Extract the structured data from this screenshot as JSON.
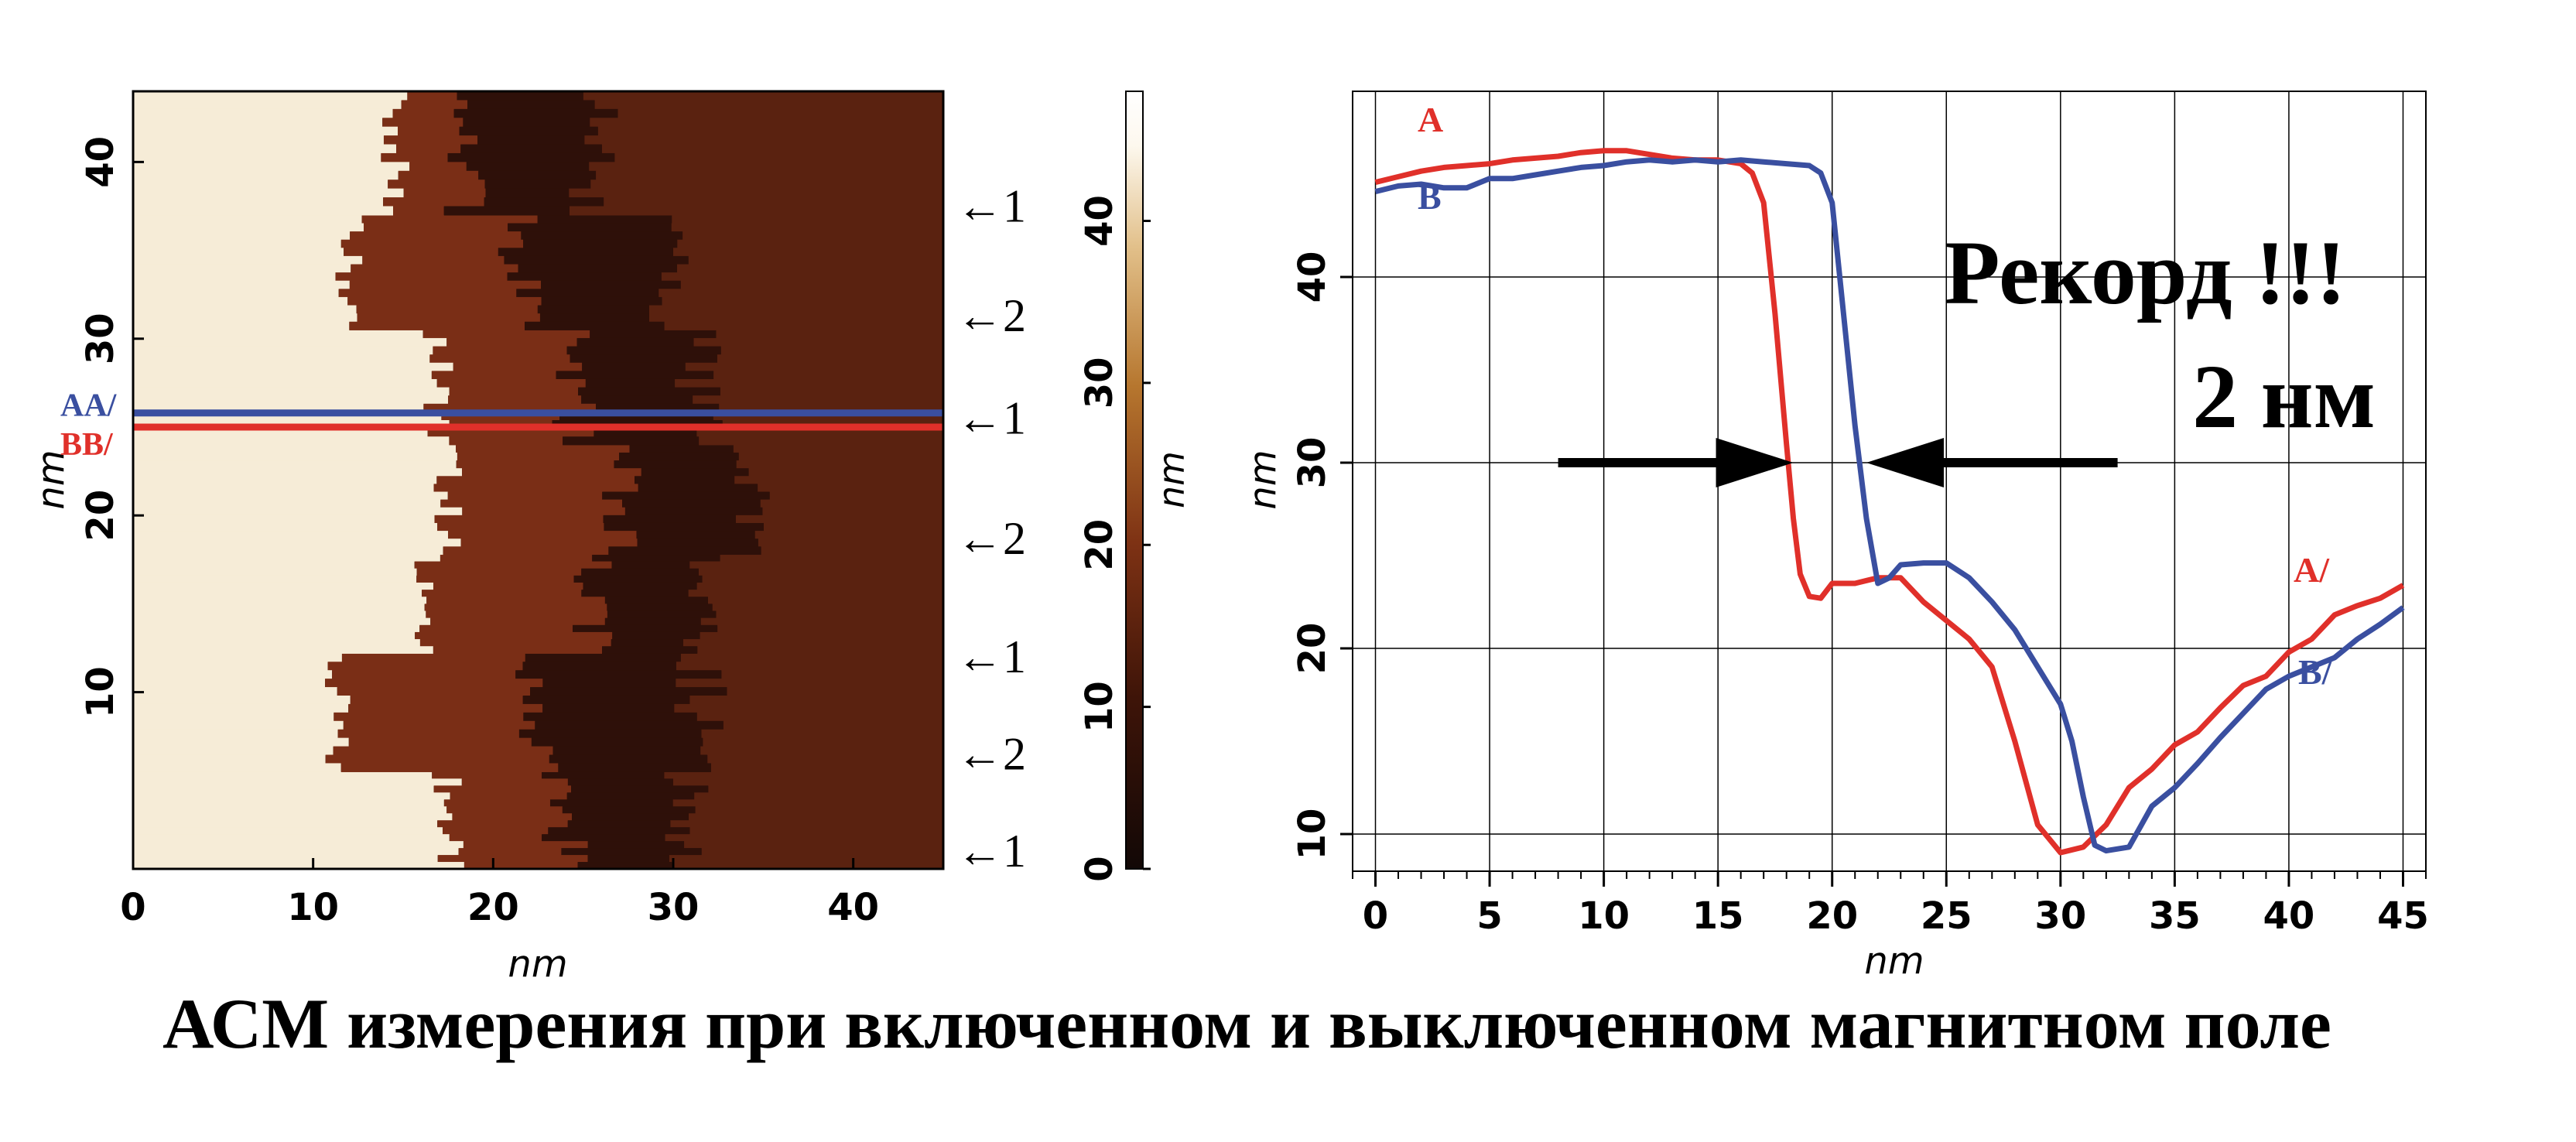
{
  "chart_data": [
    {
      "type": "heatmap",
      "xlabel": "nm",
      "ylabel": "nm",
      "xlim": [
        0,
        45
      ],
      "ylim": [
        0,
        44
      ],
      "xticks": [
        "0",
        "10",
        "20",
        "30",
        "40"
      ],
      "yticks": [
        "10",
        "20",
        "30",
        "40"
      ],
      "colorbar": {
        "label": "nm",
        "range": [
          0,
          48
        ],
        "ticks": [
          "0",
          "10",
          "20",
          "30",
          "40"
        ],
        "colors": [
          "#120806",
          "#3e1408",
          "#7e3214",
          "#b6762e",
          "#e2c08a",
          "#fdf8ee",
          "#ffffff"
        ]
      },
      "colors": {
        "high": "#f6ecd7",
        "mid": "#7a2e16",
        "low": "#1c0a07"
      },
      "domain_rows": [
        {
          "y0": 0,
          "y1": 5.5,
          "step1": 17.5,
          "step2": 24.0,
          "step3": 31.0
        },
        {
          "y0": 5.5,
          "y1": 12.2,
          "step1": 11.2,
          "step2": 22.5,
          "step3": 31.5
        },
        {
          "y0": 12.2,
          "y1": 17.8,
          "step1": 16.5,
          "step2": 25.5,
          "step3": 32.0
        },
        {
          "y0": 17.8,
          "y1": 24.0,
          "step1": 17.5,
          "step2": 27.0,
          "step3": 34.0
        },
        {
          "y0": 24.0,
          "y1": 30.5,
          "step1": 17.0,
          "step2": 24.5,
          "step3": 31.5
        },
        {
          "y0": 30.5,
          "y1": 37.0,
          "step1": 12.0,
          "step2": 21.5,
          "step3": 30.0
        },
        {
          "y0": 37.0,
          "y1": 44.0,
          "step1": 14.5,
          "step2": 18.5,
          "step3": 25.5
        }
      ],
      "profile_lines": [
        {
          "label": "AA/",
          "y": 25.8,
          "color": "#3a4fa0"
        },
        {
          "label": "BB/",
          "y": 25.0,
          "color": "#e0302a"
        }
      ],
      "domain_markers": [
        {
          "y": 37.5,
          "label": "←1"
        },
        {
          "y": 31.3,
          "label": "←2"
        },
        {
          "y": 25.5,
          "label": "←1"
        },
        {
          "y": 18.7,
          "label": "←2"
        },
        {
          "y": 12.0,
          "label": "←1"
        },
        {
          "y": 6.5,
          "label": "←2"
        },
        {
          "y": 1.0,
          "label": "←1"
        }
      ]
    },
    {
      "type": "line",
      "xlabel": "nm",
      "ylabel": "nm",
      "xlim": [
        -1,
        46
      ],
      "ylim": [
        8,
        50
      ],
      "xticks": [
        "0",
        "5",
        "10",
        "15",
        "20",
        "25",
        "30",
        "35",
        "40",
        "45"
      ],
      "yticks": [
        "10",
        "20",
        "30",
        "40"
      ],
      "series": [
        {
          "name": "A",
          "end_label": "A/",
          "color": "#e0302a",
          "x": [
            0,
            1,
            2,
            3,
            4,
            5,
            6,
            7,
            8,
            9,
            10,
            11,
            12,
            13,
            14,
            15,
            16,
            16.5,
            17,
            17.5,
            18,
            18.3,
            18.6,
            19,
            19.5,
            20,
            21,
            22,
            23,
            24,
            25,
            26,
            27,
            28,
            29,
            30,
            31,
            32,
            33,
            34,
            35,
            36,
            37,
            38,
            39,
            40,
            41,
            42,
            43,
            44,
            45
          ],
          "y": [
            45.1,
            45.4,
            45.7,
            45.9,
            46.0,
            46.1,
            46.3,
            46.4,
            46.5,
            46.7,
            46.8,
            46.8,
            46.6,
            46.4,
            46.3,
            46.3,
            46.1,
            45.6,
            44.0,
            38.0,
            31.0,
            27.0,
            24.0,
            22.8,
            22.7,
            23.5,
            23.5,
            23.8,
            23.8,
            22.5,
            21.5,
            20.5,
            19.0,
            15.0,
            10.5,
            9.0,
            9.3,
            10.5,
            12.5,
            13.5,
            14.8,
            15.5,
            16.8,
            18.0,
            18.5,
            19.8,
            20.5,
            21.8,
            22.3,
            22.7,
            23.4
          ]
        },
        {
          "name": "B",
          "end_label": "B/",
          "color": "#3a4fa0",
          "x": [
            0,
            1,
            2,
            3,
            4,
            5,
            6,
            7,
            8,
            9,
            10,
            11,
            12,
            13,
            14,
            15,
            16,
            17,
            18,
            19,
            19.5,
            20,
            20.5,
            21,
            21.5,
            22,
            22.5,
            23,
            24,
            25,
            26,
            27,
            28,
            29,
            30,
            30.5,
            31,
            31.5,
            32,
            33,
            34,
            35,
            36,
            37,
            38,
            39,
            40,
            41,
            42,
            43,
            44,
            45
          ],
          "y": [
            44.6,
            44.9,
            45.0,
            44.8,
            44.8,
            45.3,
            45.3,
            45.5,
            45.7,
            45.9,
            46.0,
            46.2,
            46.3,
            46.2,
            46.3,
            46.2,
            46.3,
            46.2,
            46.1,
            46.0,
            45.6,
            44.0,
            38.0,
            32.0,
            27.0,
            23.5,
            23.8,
            24.5,
            24.6,
            24.6,
            23.8,
            22.5,
            21.0,
            19.0,
            17.0,
            15.0,
            12.0,
            9.4,
            9.1,
            9.3,
            11.5,
            12.5,
            13.8,
            15.2,
            16.5,
            17.8,
            18.5,
            19.0,
            19.5,
            20.5,
            21.3,
            22.2
          ]
        }
      ],
      "annotation": {
        "line1": "Рекорд !!!",
        "line2": "2 нм",
        "arrow_left_x": [
          8,
          18.3
        ],
        "arrow_right_x": [
          21.5,
          32.5
        ],
        "arrow_y": 30
      }
    }
  ],
  "caption": "АСМ измерения при включенном и выключенном магнитном поле"
}
